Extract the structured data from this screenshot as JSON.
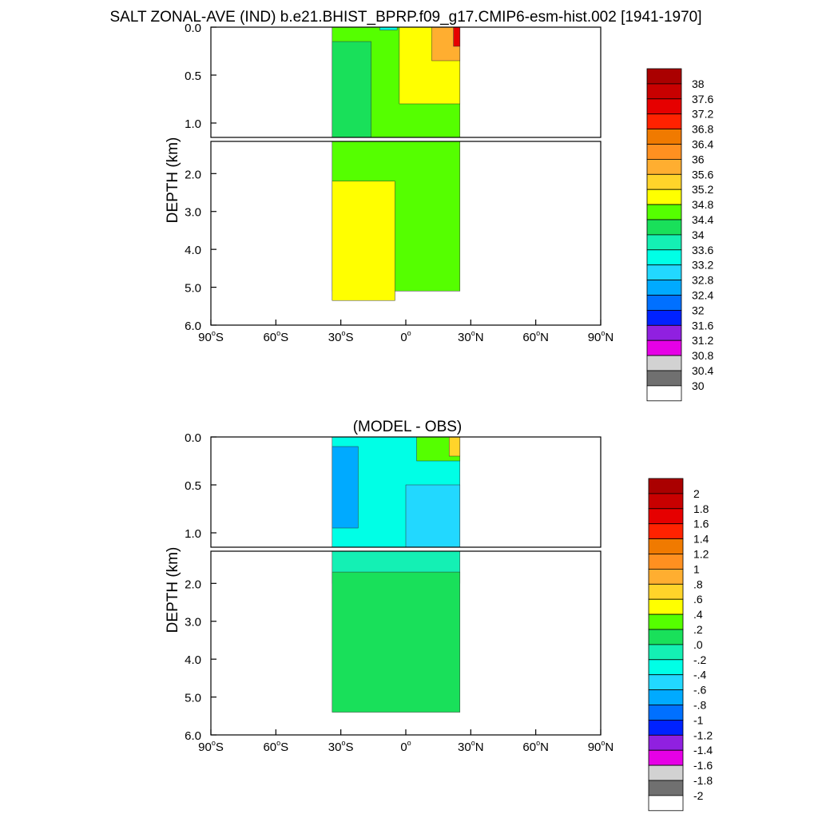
{
  "figure": {
    "title": "SALT ZONAL-AVE (IND) b.e21.BHIST_BPRP.f09_g17.CMIP6-esm-hist.002 [1941-1970]"
  },
  "chart_data": [
    {
      "type": "contour",
      "title": "",
      "ylabel": "DEPTH (km)",
      "xlabel": "",
      "x_range": [
        -90,
        90
      ],
      "x_ticks": [
        -90,
        -60,
        -30,
        0,
        30,
        60,
        90
      ],
      "x_tick_labels": [
        {
          "num": "90",
          "deg": "o",
          "hemi": "S"
        },
        {
          "num": "60",
          "deg": "o",
          "hemi": "S"
        },
        {
          "num": "30",
          "deg": "o",
          "hemi": "S"
        },
        {
          "num": "0",
          "deg": "o",
          "hemi": ""
        },
        {
          "num": "30",
          "deg": "o",
          "hemi": "N"
        },
        {
          "num": "60",
          "deg": "o",
          "hemi": "N"
        },
        {
          "num": "90",
          "deg": "o",
          "hemi": "N"
        }
      ],
      "y_range": [
        0,
        6
      ],
      "y_break_km": 1.15,
      "y_ticks_upper": [
        0.0,
        0.5,
        1.0
      ],
      "y_ticks_lower": [
        2.0,
        3.0,
        4.0,
        5.0,
        6.0
      ],
      "y_tick_labels_upper": [
        "0.0",
        "0.5",
        "1.0"
      ],
      "y_tick_labels_lower": [
        "2.0",
        "3.0",
        "4.0",
        "5.0",
        "6.0"
      ],
      "data_extent_lat": [
        -34,
        25
      ],
      "colorbar": {
        "labels": [
          "38",
          "37.6",
          "37.2",
          "36.8",
          "36.4",
          "36",
          "35.6",
          "35.2",
          "34.8",
          "34.4",
          "34",
          "33.6",
          "33.2",
          "32.8",
          "32.4",
          "32",
          "31.6",
          "31.2",
          "30.8",
          "30.4",
          "30"
        ],
        "colors": [
          "#aa0000",
          "#c80000",
          "#e60000",
          "#ff2200",
          "#f07a00",
          "#ff9020",
          "#ffae30",
          "#ffd42a",
          "#ffff00",
          "#55ff00",
          "#19e05a",
          "#14f0b4",
          "#00ffe6",
          "#22d8ff",
          "#00aaff",
          "#0070ff",
          "#0022ff",
          "#9020e0",
          "#e600e6",
          "#d2d2d2",
          "#707070",
          "#ffffff"
        ]
      },
      "regions": [
        {
          "label": "34.4-34.8",
          "lat": [
            -34,
            25
          ],
          "depth_km": [
            0,
            5.1
          ],
          "color": "#55ff00"
        },
        {
          "label": "34.0-34.4",
          "lat": [
            -34,
            -16
          ],
          "depth_km": [
            0.15,
            1.15
          ],
          "color": "#19e05a"
        },
        {
          "label": "34.8-35.2",
          "lat": [
            -34,
            -5
          ],
          "depth_km": [
            2.2,
            5.35
          ],
          "color": "#ffff00"
        },
        {
          "label": "34.8-35.2",
          "lat": [
            -3,
            25
          ],
          "depth_km": [
            0,
            0.8
          ],
          "color": "#ffff00"
        },
        {
          "label": "35.2-36.4",
          "lat": [
            12,
            25
          ],
          "depth_km": [
            0,
            0.35
          ],
          "color": "#ffae30"
        },
        {
          "label": "36.4-38",
          "lat": [
            22,
            25
          ],
          "depth_km": [
            0,
            0.2
          ],
          "color": "#e60000"
        },
        {
          "label": "33.2-33.6",
          "lat": [
            -12,
            -4
          ],
          "depth_km": [
            0,
            0.03
          ],
          "color": "#00ffe6"
        }
      ]
    },
    {
      "type": "contour",
      "title": "(MODEL - OBS)",
      "ylabel": "DEPTH (km)",
      "xlabel": "",
      "x_range": [
        -90,
        90
      ],
      "x_ticks": [
        -90,
        -60,
        -30,
        0,
        30,
        60,
        90
      ],
      "x_tick_labels": [
        {
          "num": "90",
          "deg": "o",
          "hemi": "S"
        },
        {
          "num": "60",
          "deg": "o",
          "hemi": "S"
        },
        {
          "num": "30",
          "deg": "o",
          "hemi": "S"
        },
        {
          "num": "0",
          "deg": "o",
          "hemi": ""
        },
        {
          "num": "30",
          "deg": "o",
          "hemi": "N"
        },
        {
          "num": "60",
          "deg": "o",
          "hemi": "N"
        },
        {
          "num": "90",
          "deg": "o",
          "hemi": "N"
        }
      ],
      "y_range": [
        0,
        6
      ],
      "y_break_km": 1.15,
      "y_ticks_upper": [
        0.0,
        0.5,
        1.0
      ],
      "y_ticks_lower": [
        2.0,
        3.0,
        4.0,
        5.0,
        6.0
      ],
      "y_tick_labels_upper": [
        "0.0",
        "0.5",
        "1.0"
      ],
      "y_tick_labels_lower": [
        "2.0",
        "3.0",
        "4.0",
        "5.0",
        "6.0"
      ],
      "data_extent_lat": [
        -34,
        25
      ],
      "colorbar": {
        "labels": [
          "2",
          "1.8",
          "1.6",
          "1.4",
          "1.2",
          "1",
          ".8",
          ".6",
          ".4",
          ".2",
          ".0",
          "-.2",
          "-.4",
          "-.6",
          "-.8",
          "-1",
          "-1.2",
          "-1.4",
          "-1.6",
          "-1.8",
          "-2"
        ],
        "colors": [
          "#aa0000",
          "#c80000",
          "#e60000",
          "#ff2200",
          "#f07a00",
          "#ff9020",
          "#ffae30",
          "#ffd42a",
          "#ffff00",
          "#55ff00",
          "#19e05a",
          "#14f0b4",
          "#00ffe6",
          "#22d8ff",
          "#00aaff",
          "#0070ff",
          "#0022ff",
          "#9020e0",
          "#e600e6",
          "#d2d2d2",
          "#707070",
          "#ffffff"
        ]
      },
      "regions": [
        {
          "label": "-0.2-0.0",
          "lat": [
            -34,
            25
          ],
          "depth_km": [
            1.15,
            2.0
          ],
          "color": "#14f0b4"
        },
        {
          "label": "-0.4--0.2",
          "lat": [
            -34,
            25
          ],
          "depth_km": [
            0,
            1.15
          ],
          "color": "#00ffe6"
        },
        {
          "label": "-0.8--0.6",
          "lat": [
            -34,
            -22
          ],
          "depth_km": [
            0.1,
            0.95
          ],
          "color": "#00aaff"
        },
        {
          "label": "-0.6--0.4",
          "lat": [
            0,
            25
          ],
          "depth_km": [
            0.5,
            1.15
          ],
          "color": "#22d8ff"
        },
        {
          "label": "0.0-0.2",
          "lat": [
            -34,
            25
          ],
          "depth_km": [
            1.7,
            5.4
          ],
          "color": "#19e05a"
        },
        {
          "label": "0.2-0.4",
          "lat": [
            5,
            25
          ],
          "depth_km": [
            0,
            0.25
          ],
          "color": "#55ff00"
        },
        {
          "label": "0.4-1.0",
          "lat": [
            20,
            25
          ],
          "depth_km": [
            0,
            0.2
          ],
          "color": "#ffd42a"
        }
      ]
    }
  ]
}
